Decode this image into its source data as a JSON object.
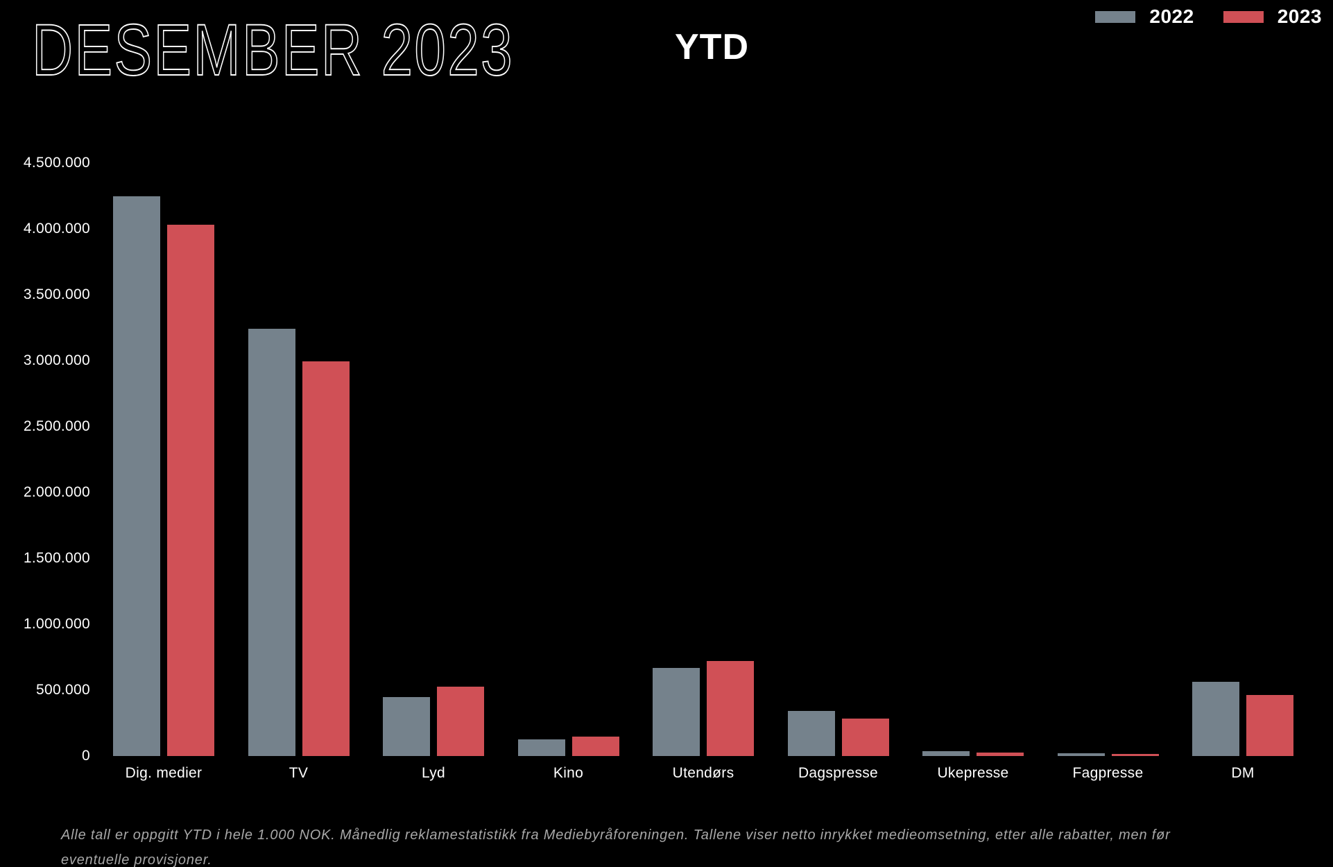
{
  "header": {
    "title": "DESEMBER 2023",
    "suffix": "YTD"
  },
  "legend": {
    "items": [
      {
        "label": "2022",
        "color": "#75828c"
      },
      {
        "label": "2023",
        "color": "#d05056"
      }
    ]
  },
  "chart_data": {
    "type": "bar",
    "title": "DESEMBER 2023 YTD",
    "unit": "1.000 NOK",
    "categories": [
      "Dig. medier",
      "TV",
      "Lyd",
      "Kino",
      "Utendørs",
      "Dagspresse",
      "Ukepresse",
      "Fagpresse",
      "DM"
    ],
    "series": [
      {
        "name": "2022",
        "color": "#75828c",
        "values": [
          4250000,
          3240000,
          450000,
          127000,
          668000,
          343000,
          38000,
          22000,
          562000
        ]
      },
      {
        "name": "2023",
        "color": "#d05056",
        "values": [
          4030000,
          2995000,
          525000,
          145000,
          722000,
          282000,
          26000,
          18000,
          462000
        ]
      }
    ],
    "xlabel": "",
    "ylabel": "",
    "ylim": [
      0,
      4500000
    ],
    "yticks": [
      {
        "value": 0,
        "label": "0"
      },
      {
        "value": 500000,
        "label": "500.000"
      },
      {
        "value": 1000000,
        "label": "1.000.000"
      },
      {
        "value": 1500000,
        "label": "1.500.000"
      },
      {
        "value": 2000000,
        "label": "2.000.000"
      },
      {
        "value": 2500000,
        "label": "2.500.000"
      },
      {
        "value": 3000000,
        "label": "3.000.000"
      },
      {
        "value": 3500000,
        "label": "3.500.000"
      },
      {
        "value": 4000000,
        "label": "4.000.000"
      },
      {
        "value": 4500000,
        "label": "4.500.000"
      }
    ],
    "grid": false,
    "legend_position": "top-right",
    "background": "#000000"
  },
  "footnote": {
    "line1": "Alle tall er oppgitt YTD i hele 1.000 NOK. Månedlig reklamestatistikk fra Mediebyråforeningen. Tallene viser netto inrykket medieomsetning, etter alle rabatter, men før",
    "line2": "eventuelle provisjoner."
  }
}
